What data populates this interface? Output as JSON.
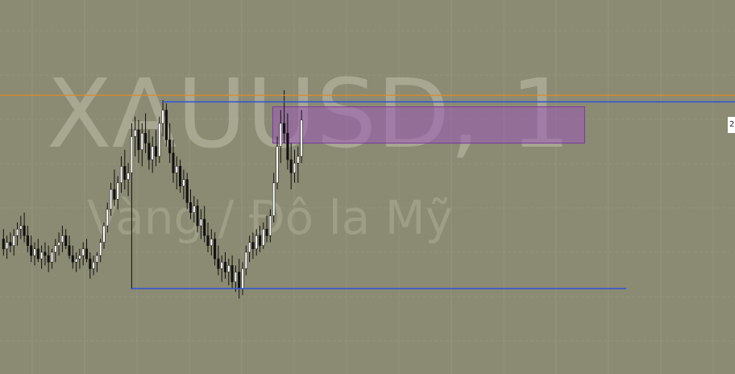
{
  "watermark": {
    "symbol_line": "XAUUSD, 1",
    "description_line": "Vàng / Đô la Mỹ"
  },
  "price_tag": "2",
  "colors": {
    "background": "#8b8a72",
    "grid": "#979680",
    "current_price_line": "#e08a2a",
    "level_lines": "#2f52d8",
    "zone_fill": "#9a5ab8",
    "zone_border": "#7a3a9a",
    "candle": "#ffffff",
    "wick": "#111111"
  },
  "chart_data": {
    "type": "candlestick",
    "symbol": "XAUUSD",
    "timeframe": "1",
    "price_axis_visible": false,
    "time_axis_visible": false,
    "ylim": [
      0,
      100
    ],
    "grid": true,
    "current_price": 78.5,
    "horizontal_levels": [
      {
        "name": "resistance",
        "value": 76.5,
        "bar_start": 46,
        "bar_end": 213
      },
      {
        "name": "support",
        "value": 20,
        "bar_start": 37,
        "bar_end": 180
      }
    ],
    "zones": [
      {
        "name": "supply-zone",
        "top": 75,
        "bottom": 64,
        "bar_start": 78,
        "bar_end": 168
      }
    ],
    "candles": [
      {
        "o": 35,
        "h": 38,
        "l": 30,
        "c": 32
      },
      {
        "o": 32,
        "h": 36,
        "l": 29,
        "c": 34
      },
      {
        "o": 34,
        "h": 37,
        "l": 31,
        "c": 33
      },
      {
        "o": 33,
        "h": 38,
        "l": 30,
        "c": 36
      },
      {
        "o": 36,
        "h": 40,
        "l": 33,
        "c": 38
      },
      {
        "o": 38,
        "h": 42,
        "l": 35,
        "c": 39
      },
      {
        "o": 39,
        "h": 43,
        "l": 34,
        "c": 36
      },
      {
        "o": 36,
        "h": 39,
        "l": 31,
        "c": 33
      },
      {
        "o": 33,
        "h": 36,
        "l": 28,
        "c": 30
      },
      {
        "o": 30,
        "h": 34,
        "l": 27,
        "c": 32
      },
      {
        "o": 32,
        "h": 35,
        "l": 28,
        "c": 29
      },
      {
        "o": 29,
        "h": 33,
        "l": 26,
        "c": 31
      },
      {
        "o": 31,
        "h": 34,
        "l": 27,
        "c": 30
      },
      {
        "o": 30,
        "h": 33,
        "l": 25,
        "c": 28
      },
      {
        "o": 28,
        "h": 32,
        "l": 26,
        "c": 31
      },
      {
        "o": 31,
        "h": 35,
        "l": 28,
        "c": 33
      },
      {
        "o": 33,
        "h": 37,
        "l": 30,
        "c": 34
      },
      {
        "o": 34,
        "h": 39,
        "l": 31,
        "c": 36
      },
      {
        "o": 36,
        "h": 38,
        "l": 32,
        "c": 33
      },
      {
        "o": 33,
        "h": 36,
        "l": 29,
        "c": 30
      },
      {
        "o": 30,
        "h": 33,
        "l": 26,
        "c": 28
      },
      {
        "o": 28,
        "h": 31,
        "l": 25,
        "c": 29
      },
      {
        "o": 29,
        "h": 32,
        "l": 26,
        "c": 30
      },
      {
        "o": 30,
        "h": 34,
        "l": 27,
        "c": 32
      },
      {
        "o": 32,
        "h": 35,
        "l": 28,
        "c": 29
      },
      {
        "o": 29,
        "h": 31,
        "l": 23,
        "c": 26
      },
      {
        "o": 26,
        "h": 30,
        "l": 24,
        "c": 28
      },
      {
        "o": 28,
        "h": 31,
        "l": 25,
        "c": 30
      },
      {
        "o": 30,
        "h": 35,
        "l": 28,
        "c": 34
      },
      {
        "o": 34,
        "h": 40,
        "l": 32,
        "c": 39
      },
      {
        "o": 39,
        "h": 46,
        "l": 37,
        "c": 44
      },
      {
        "o": 44,
        "h": 52,
        "l": 42,
        "c": 50
      },
      {
        "o": 50,
        "h": 56,
        "l": 45,
        "c": 47
      },
      {
        "o": 47,
        "h": 54,
        "l": 44,
        "c": 52
      },
      {
        "o": 52,
        "h": 60,
        "l": 49,
        "c": 57
      },
      {
        "o": 57,
        "h": 62,
        "l": 50,
        "c": 53
      },
      {
        "o": 53,
        "h": 58,
        "l": 48,
        "c": 55
      },
      {
        "o": 55,
        "h": 70,
        "l": 20,
        "c": 66
      },
      {
        "o": 66,
        "h": 72,
        "l": 60,
        "c": 68
      },
      {
        "o": 68,
        "h": 71,
        "l": 58,
        "c": 62
      },
      {
        "o": 62,
        "h": 70,
        "l": 57,
        "c": 67
      },
      {
        "o": 67,
        "h": 73,
        "l": 61,
        "c": 64
      },
      {
        "o": 64,
        "h": 68,
        "l": 56,
        "c": 59
      },
      {
        "o": 59,
        "h": 66,
        "l": 55,
        "c": 63
      },
      {
        "o": 63,
        "h": 68,
        "l": 57,
        "c": 60
      },
      {
        "o": 60,
        "h": 72,
        "l": 58,
        "c": 70
      },
      {
        "o": 70,
        "h": 77,
        "l": 66,
        "c": 74
      },
      {
        "o": 74,
        "h": 76,
        "l": 63,
        "c": 65
      },
      {
        "o": 65,
        "h": 70,
        "l": 58,
        "c": 61
      },
      {
        "o": 61,
        "h": 65,
        "l": 52,
        "c": 55
      },
      {
        "o": 55,
        "h": 60,
        "l": 50,
        "c": 57
      },
      {
        "o": 57,
        "h": 59,
        "l": 49,
        "c": 51
      },
      {
        "o": 51,
        "h": 56,
        "l": 47,
        "c": 53
      },
      {
        "o": 53,
        "h": 55,
        "l": 44,
        "c": 46
      },
      {
        "o": 46,
        "h": 50,
        "l": 41,
        "c": 43
      },
      {
        "o": 43,
        "h": 48,
        "l": 40,
        "c": 45
      },
      {
        "o": 45,
        "h": 47,
        "l": 37,
        "c": 39
      },
      {
        "o": 39,
        "h": 44,
        "l": 35,
        "c": 41
      },
      {
        "o": 41,
        "h": 45,
        "l": 34,
        "c": 36
      },
      {
        "o": 36,
        "h": 40,
        "l": 31,
        "c": 33
      },
      {
        "o": 33,
        "h": 38,
        "l": 30,
        "c": 35
      },
      {
        "o": 35,
        "h": 37,
        "l": 27,
        "c": 29
      },
      {
        "o": 29,
        "h": 33,
        "l": 24,
        "c": 26
      },
      {
        "o": 26,
        "h": 30,
        "l": 22,
        "c": 28
      },
      {
        "o": 28,
        "h": 31,
        "l": 23,
        "c": 25
      },
      {
        "o": 25,
        "h": 29,
        "l": 21,
        "c": 27
      },
      {
        "o": 27,
        "h": 30,
        "l": 20,
        "c": 22
      },
      {
        "o": 22,
        "h": 27,
        "l": 19,
        "c": 25
      },
      {
        "o": 25,
        "h": 29,
        "l": 17,
        "c": 20
      },
      {
        "o": 20,
        "h": 28,
        "l": 18,
        "c": 26
      },
      {
        "o": 26,
        "h": 33,
        "l": 24,
        "c": 31
      },
      {
        "o": 31,
        "h": 36,
        "l": 28,
        "c": 34
      },
      {
        "o": 34,
        "h": 37,
        "l": 29,
        "c": 32
      },
      {
        "o": 32,
        "h": 38,
        "l": 30,
        "c": 36
      },
      {
        "o": 36,
        "h": 39,
        "l": 31,
        "c": 33
      },
      {
        "o": 33,
        "h": 40,
        "l": 32,
        "c": 38
      },
      {
        "o": 38,
        "h": 42,
        "l": 34,
        "c": 36
      },
      {
        "o": 36,
        "h": 44,
        "l": 34,
        "c": 42
      },
      {
        "o": 42,
        "h": 55,
        "l": 40,
        "c": 52
      },
      {
        "o": 52,
        "h": 66,
        "l": 50,
        "c": 63
      },
      {
        "o": 63,
        "h": 74,
        "l": 58,
        "c": 70
      },
      {
        "o": 70,
        "h": 80,
        "l": 64,
        "c": 67
      },
      {
        "o": 67,
        "h": 73,
        "l": 56,
        "c": 59
      },
      {
        "o": 59,
        "h": 64,
        "l": 50,
        "c": 55
      },
      {
        "o": 55,
        "h": 62,
        "l": 52,
        "c": 58
      },
      {
        "o": 58,
        "h": 63,
        "l": 52,
        "c": 60
      },
      {
        "o": 60,
        "h": 74,
        "l": 58,
        "c": 71
      }
    ]
  }
}
